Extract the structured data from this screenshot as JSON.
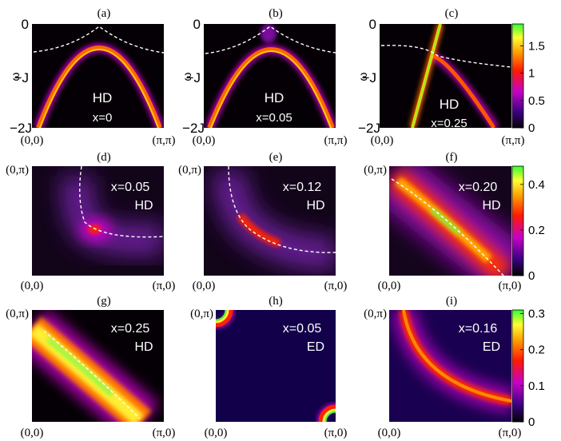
{
  "chart_data": [
    {
      "type": "heatmap",
      "panel": "(a)",
      "corner_x": [
        "(0,0)",
        "(π,π)"
      ],
      "ylabel": "ω −J",
      "yticks": [
        "0",
        "−J",
        "−2J"
      ],
      "annotations": [
        "HD",
        "x=0"
      ],
      "description_values": {
        "band_peak_omega_over_J": -0.35,
        "fermi_line_omega_over_J": -0.5
      }
    },
    {
      "type": "heatmap",
      "panel": "(b)",
      "corner_x": [
        "(0,0)",
        "(π,π)"
      ],
      "ylabel": "ω −J",
      "yticks": [
        "0",
        "−J",
        "−2J"
      ],
      "annotations": [
        "HD",
        "x=0.05"
      ]
    },
    {
      "type": "heatmap",
      "panel": "(c)",
      "corner_x": [
        "(0,0)",
        "(π,π)"
      ],
      "ylabel": "ω −J",
      "yticks": [
        "0",
        "−J",
        "−2J"
      ],
      "annotations": [
        "HD",
        "x=0.25"
      ]
    },
    {
      "type": "heatmap",
      "panel": "(d)",
      "corner_labels": [
        "(0,π)",
        "(0,0)",
        "(π,0)"
      ],
      "annotations": [
        "x=0.05",
        "HD"
      ]
    },
    {
      "type": "heatmap",
      "panel": "(e)",
      "corner_labels": [
        "(0,π)",
        "(0,0)",
        "(π,0)"
      ],
      "annotations": [
        "x=0.12",
        "HD"
      ]
    },
    {
      "type": "heatmap",
      "panel": "(f)",
      "corner_labels": [
        "(0,π)",
        "(0,0)",
        "(π,0)"
      ],
      "annotations": [
        "x=0.20",
        "HD"
      ]
    },
    {
      "type": "heatmap",
      "panel": "(g)",
      "corner_labels": [
        "(0,π)",
        "(0,0)",
        "(π,0)"
      ],
      "annotations": [
        "x=0.25",
        "HD"
      ]
    },
    {
      "type": "heatmap",
      "panel": "(h)",
      "corner_labels": [
        "(0,π)",
        "(0,0)",
        "(π,0)"
      ],
      "annotations": [
        "x=0.05",
        "ED"
      ]
    },
    {
      "type": "heatmap",
      "panel": "(i)",
      "corner_labels": [
        "(0,π)",
        "(0,0)",
        "(π,0)"
      ],
      "annotations": [
        "x=0.16",
        "ED"
      ]
    }
  ],
  "colorbars": [
    {
      "row": 1,
      "ticks": [
        "1.5",
        "1",
        "0.5",
        "0"
      ],
      "tick_values": [
        1.5,
        1,
        0.5,
        0
      ],
      "range": [
        0,
        1.9
      ]
    },
    {
      "row": 2,
      "ticks": [
        "0.4",
        "0.2",
        "0"
      ],
      "tick_values": [
        0.4,
        0.2,
        0
      ],
      "range": [
        0,
        0.48
      ]
    },
    {
      "row": 3,
      "ticks": [
        "0.3",
        "0.2",
        "0.1",
        "0"
      ],
      "tick_values": [
        0.3,
        0.2,
        0.1,
        0
      ],
      "range": [
        0,
        0.31
      ]
    }
  ],
  "colors": {
    "background": "#050005",
    "low": "#3a0080",
    "mid": "#c800c8",
    "high_red": "#ff1a00",
    "orange": "#ff9900",
    "yellow": "#ffff33",
    "max_green": "#33ff33",
    "dashed_line": "#ffffff"
  }
}
